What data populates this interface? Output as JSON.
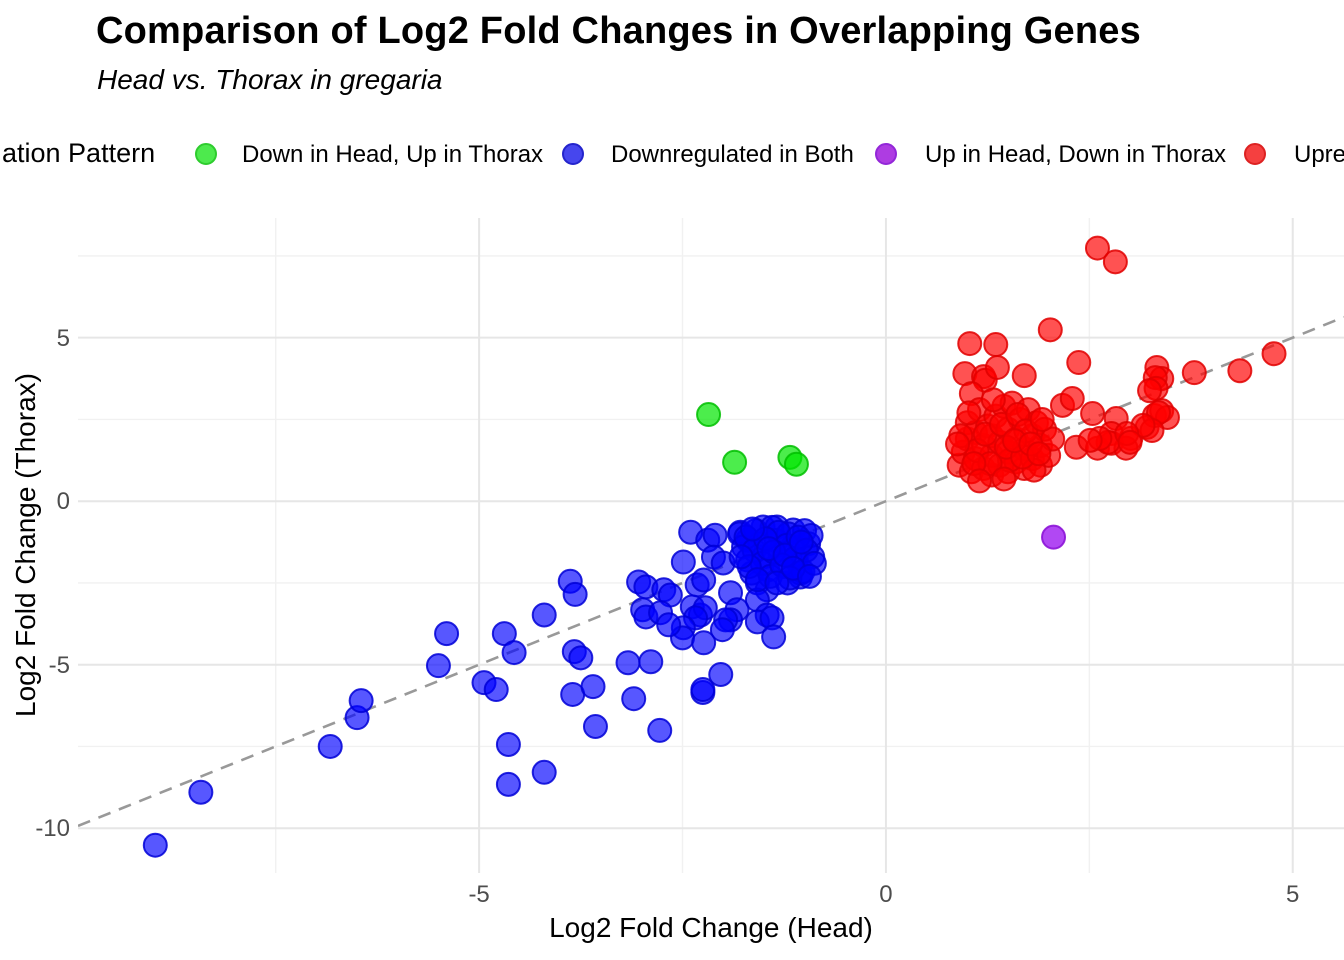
{
  "header": {
    "title": "Comparison of Log2 Fold Changes in Overlapping Genes",
    "subtitle": "Head vs. Thorax in gregaria"
  },
  "legend": {
    "title": "ation Pattern",
    "title_truncated": true,
    "items": [
      {
        "label": "Down in Head, Up in Thorax",
        "fill": "#4dea4d",
        "stroke": "#2ecc2e",
        "truncated": false
      },
      {
        "label": "Downregulated in Both",
        "fill": "#4646ee",
        "stroke": "#2424cc",
        "truncated": false
      },
      {
        "label": "Up in Head, Down in Thorax",
        "fill": "#ae3ce2",
        "stroke": "#9327d8",
        "truncated": false
      },
      {
        "label": "Upre",
        "fill": "#f54040",
        "stroke": "#dd2222",
        "truncated": true
      }
    ]
  },
  "chart_data": {
    "type": "scatter",
    "title": "Comparison of Log2 Fold Changes in Overlapping Genes",
    "subtitle": "Head vs. Thorax in gregaria",
    "xlabel": "Log2 Fold Change (Head)",
    "ylabel": "Log2 Fold Change (Thorax)",
    "xlim": [
      -9.93,
      5.63
    ],
    "ylim": [
      -11.37,
      8.66
    ],
    "x_major_ticks": [
      -5,
      0,
      5
    ],
    "x_minor_ticks": [
      -7.5,
      -2.5,
      2.5
    ],
    "y_major_ticks": [
      5,
      0,
      -5,
      -10
    ],
    "y_minor_ticks": [
      7.5,
      2.5,
      -2.5,
      -7.5
    ],
    "grid": {
      "major_color": "#e6e6e6",
      "minor_color": "#f1f1f1"
    },
    "reference_line": {
      "type": "identity y=x",
      "style": "dashed",
      "color": "#999999"
    },
    "point_radius_px": 11.5,
    "series": [
      {
        "name": "Downregulated in Both",
        "fill": "rgba(0,0,255,0.66)",
        "stroke": "rgba(0,0,215,0.85)",
        "points": [
          [
            -8.98,
            -10.52
          ],
          [
            -8.42,
            -8.9
          ],
          [
            -6.83,
            -7.5
          ],
          [
            -6.5,
            -6.62
          ],
          [
            -6.45,
            -6.1
          ],
          [
            -5.5,
            -5.03
          ],
          [
            -5.4,
            -4.05
          ],
          [
            -4.94,
            -5.55
          ],
          [
            -4.79,
            -5.76
          ],
          [
            -4.69,
            -4.05
          ],
          [
            -4.57,
            -4.63
          ],
          [
            -4.64,
            -7.44
          ],
          [
            -4.2,
            -8.29
          ],
          [
            -4.64,
            -8.66
          ],
          [
            -4.2,
            -3.48
          ],
          [
            -3.88,
            -2.45
          ],
          [
            -3.82,
            -2.85
          ],
          [
            -3.83,
            -4.6
          ],
          [
            -3.85,
            -5.91
          ],
          [
            -3.6,
            -5.67
          ],
          [
            -3.1,
            -6.04
          ],
          [
            -2.25,
            -5.85
          ],
          [
            -3.57,
            -6.89
          ],
          [
            -2.78,
            -7.01
          ],
          [
            -3.75,
            -4.79
          ],
          [
            -3.17,
            -4.94
          ],
          [
            -2.89,
            -4.91
          ],
          [
            -3.04,
            -2.47
          ],
          [
            -2.95,
            -2.62
          ],
          [
            -2.4,
            -0.95
          ],
          [
            -2.19,
            -1.19
          ],
          [
            -2.1,
            -1.04
          ],
          [
            -2.49,
            -1.86
          ],
          [
            -2.73,
            -2.71
          ],
          [
            -2.65,
            -2.87
          ],
          [
            -2.99,
            -3.32
          ],
          [
            -2.95,
            -3.54
          ],
          [
            -2.32,
            -2.56
          ],
          [
            -2.24,
            -2.41
          ],
          [
            -2.12,
            -1.71
          ],
          [
            -2.0,
            -1.89
          ],
          [
            -2.38,
            -3.23
          ],
          [
            -2.28,
            -3.48
          ],
          [
            -1.91,
            -2.8
          ],
          [
            -1.58,
            -2.5
          ],
          [
            -1.46,
            -2.71
          ],
          [
            -1.58,
            -3.02
          ],
          [
            -1.83,
            -3.32
          ],
          [
            -1.91,
            -3.63
          ],
          [
            -1.46,
            -3.48
          ],
          [
            -1.21,
            -2.5
          ],
          [
            -1.05,
            -2.32
          ],
          [
            -2.22,
            -3.26
          ],
          [
            -2.34,
            -3.57
          ],
          [
            -2.49,
            -3.87
          ],
          [
            -2.5,
            -4.18
          ],
          [
            -2.24,
            -4.33
          ],
          [
            -1.97,
            -3.63
          ],
          [
            -2.01,
            -3.93
          ],
          [
            -1.58,
            -3.69
          ],
          [
            -1.4,
            -3.57
          ],
          [
            -1.38,
            -4.15
          ],
          [
            -2.03,
            -5.3
          ],
          [
            -2.25,
            -5.76
          ],
          [
            -2.77,
            -3.41
          ],
          [
            -2.67,
            -3.78
          ],
          [
            -1.79,
            -0.95
          ],
          [
            -1.7,
            -1.19
          ],
          [
            -1.51,
            -0.79
          ],
          [
            -1.34,
            -0.79
          ],
          [
            -1.14,
            -0.88
          ],
          [
            -1.8,
            -1.0
          ],
          [
            -1.75,
            -1.4
          ],
          [
            -1.7,
            -1.8
          ],
          [
            -1.65,
            -2.2
          ],
          [
            -1.6,
            -0.9
          ],
          [
            -1.55,
            -1.3
          ],
          [
            -1.5,
            -1.7
          ],
          [
            -1.45,
            -2.1
          ],
          [
            -1.4,
            -0.8
          ],
          [
            -1.35,
            -1.2
          ],
          [
            -1.3,
            -1.6
          ],
          [
            -1.25,
            -2.0
          ],
          [
            -1.2,
            -1.0
          ],
          [
            -1.15,
            -1.4
          ],
          [
            -1.1,
            -1.8
          ],
          [
            -1.05,
            -2.2
          ],
          [
            -1.0,
            -0.9
          ],
          [
            -0.95,
            -1.3
          ],
          [
            -0.9,
            -1.7
          ],
          [
            -1.72,
            -1.1
          ],
          [
            -1.62,
            -1.5
          ],
          [
            -1.52,
            -1.9
          ],
          [
            -1.42,
            -2.3
          ],
          [
            -1.32,
            -0.95
          ],
          [
            -1.22,
            -1.35
          ],
          [
            -1.12,
            -1.75
          ],
          [
            -1.02,
            -2.15
          ],
          [
            -0.92,
            -1.05
          ],
          [
            -1.68,
            -2.0
          ],
          [
            -1.58,
            -2.4
          ],
          [
            -1.48,
            -1.15
          ],
          [
            -1.38,
            -1.55
          ],
          [
            -1.28,
            -1.95
          ],
          [
            -1.18,
            -2.35
          ],
          [
            -1.08,
            -1.1
          ],
          [
            -0.98,
            -1.5
          ],
          [
            -0.88,
            -1.9
          ],
          [
            -1.78,
            -1.7
          ],
          [
            -1.44,
            -1.45
          ],
          [
            -1.34,
            -2.5
          ],
          [
            -1.24,
            -1.65
          ],
          [
            -1.14,
            -2.05
          ],
          [
            -1.04,
            -1.25
          ],
          [
            -0.94,
            -2.3
          ],
          [
            -1.64,
            -0.85
          ]
        ]
      },
      {
        "name": "Down in Head, Up in Thorax",
        "fill": "rgba(0,230,0,0.7)",
        "stroke": "rgba(0,190,0,0.85)",
        "points": [
          [
            -2.18,
            2.65
          ],
          [
            -1.86,
            1.19
          ],
          [
            -1.18,
            1.34
          ],
          [
            -1.1,
            1.13
          ]
        ]
      },
      {
        "name": "Upre",
        "fill": "rgba(255,0,0,0.68)",
        "stroke": "rgba(225,0,0,0.85)",
        "points": [
          [
            2.6,
            7.74
          ],
          [
            2.82,
            7.32
          ],
          [
            2.02,
            5.24
          ],
          [
            1.03,
            4.82
          ],
          [
            1.35,
            4.79
          ],
          [
            2.37,
            4.24
          ],
          [
            0.97,
            3.9
          ],
          [
            1.2,
            3.81
          ],
          [
            1.22,
            3.7
          ],
          [
            1.37,
            4.09
          ],
          [
            1.7,
            3.84
          ],
          [
            3.33,
            4.09
          ],
          [
            3.39,
            3.75
          ],
          [
            3.31,
            3.78
          ],
          [
            3.79,
            3.93
          ],
          [
            4.35,
            3.99
          ],
          [
            4.77,
            4.51
          ],
          [
            3.32,
            3.45
          ],
          [
            1.05,
            3.29
          ],
          [
            2.17,
            2.93
          ],
          [
            2.29,
            3.14
          ],
          [
            2.54,
            2.68
          ],
          [
            2.83,
            2.53
          ],
          [
            2.77,
            2.07
          ],
          [
            3.01,
            1.92
          ],
          [
            2.34,
            1.65
          ],
          [
            2.6,
            1.62
          ],
          [
            2.77,
            1.77
          ],
          [
            2.95,
            1.62
          ],
          [
            3.21,
            2.26
          ],
          [
            3.3,
            2.62
          ],
          [
            3.39,
            2.77
          ],
          [
            3.24,
            3.38
          ],
          [
            3.46,
            2.56
          ],
          [
            3.35,
            2.71
          ],
          [
            3.27,
            2.16
          ],
          [
            3.16,
            2.32
          ],
          [
            2.73,
            1.8
          ],
          [
            2.63,
            1.92
          ],
          [
            2.51,
            1.86
          ],
          [
            2.96,
            2.07
          ],
          [
            3.0,
            1.8
          ],
          [
            0.9,
            1.1
          ],
          [
            0.95,
            1.5
          ],
          [
            1.0,
            1.9
          ],
          [
            1.0,
            2.4
          ],
          [
            1.05,
            0.9
          ],
          [
            1.1,
            1.3
          ],
          [
            1.1,
            2.1
          ],
          [
            1.15,
            2.8
          ],
          [
            1.2,
            1.0
          ],
          [
            1.2,
            1.7
          ],
          [
            1.25,
            2.3
          ],
          [
            1.3,
            0.8
          ],
          [
            1.3,
            1.4
          ],
          [
            1.3,
            2.0
          ],
          [
            1.35,
            2.6
          ],
          [
            1.4,
            1.1
          ],
          [
            1.4,
            1.8
          ],
          [
            1.45,
            2.9
          ],
          [
            1.5,
            0.9
          ],
          [
            1.5,
            1.5
          ],
          [
            1.5,
            2.2
          ],
          [
            1.55,
            3.0
          ],
          [
            1.6,
            1.2
          ],
          [
            1.6,
            1.9
          ],
          [
            1.65,
            2.5
          ],
          [
            1.7,
            1.0
          ],
          [
            1.7,
            1.6
          ],
          [
            1.75,
            2.8
          ],
          [
            1.8,
            1.3
          ],
          [
            1.8,
            2.0
          ],
          [
            1.85,
            2.4
          ],
          [
            1.9,
            1.1
          ],
          [
            1.9,
            1.7
          ],
          [
            1.95,
            2.2
          ],
          [
            2.0,
            1.4
          ],
          [
            2.05,
            1.9
          ],
          [
            0.92,
            2.0
          ],
          [
            1.02,
            2.7
          ],
          [
            1.12,
            1.55
          ],
          [
            1.22,
            2.05
          ],
          [
            1.32,
            3.1
          ],
          [
            1.42,
            2.35
          ],
          [
            1.52,
            1.25
          ],
          [
            1.62,
            2.65
          ],
          [
            1.72,
            2.15
          ],
          [
            1.82,
            0.95
          ],
          [
            1.92,
            2.5
          ],
          [
            1.28,
            1.15
          ],
          [
            1.48,
            1.65
          ],
          [
            1.68,
            1.35
          ],
          [
            0.88,
            1.75
          ],
          [
            1.58,
            1.85
          ],
          [
            1.78,
            1.75
          ],
          [
            1.08,
            1.15
          ],
          [
            1.88,
            1.45
          ],
          [
            1.15,
            0.62
          ],
          [
            1.45,
            0.68
          ]
        ]
      },
      {
        "name": "Up in Head, Down in Thorax",
        "fill": "rgba(160,32,240,0.82)",
        "stroke": "rgba(140,20,215,0.9)",
        "points": [
          [
            2.06,
            -1.1
          ]
        ]
      }
    ]
  }
}
